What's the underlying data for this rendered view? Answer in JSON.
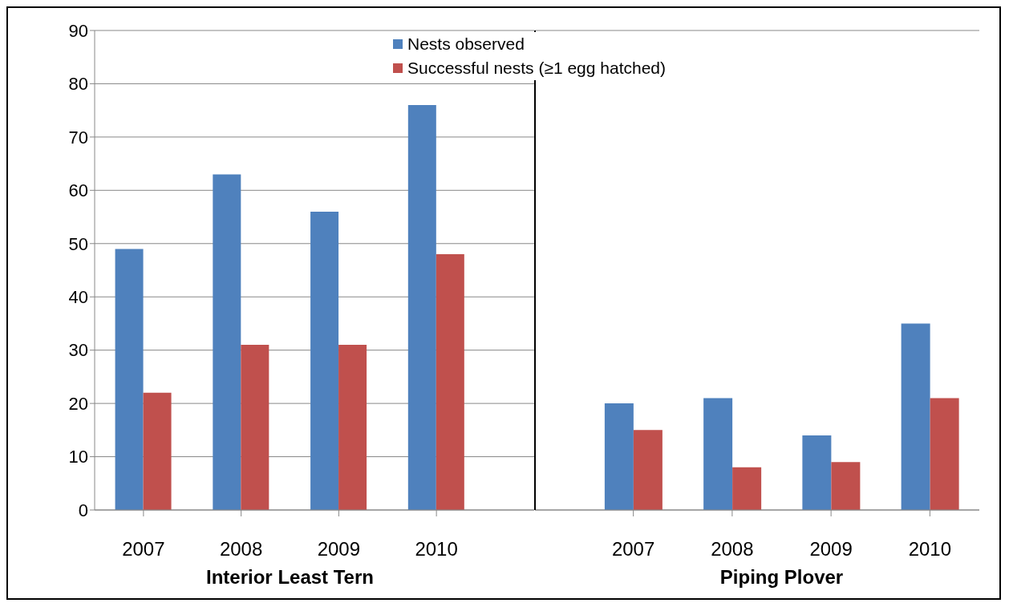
{
  "chart_data": [
    {
      "type": "bar",
      "categories": [
        "2007",
        "2008",
        "2009",
        "2010"
      ],
      "xlabel": "Interior Least Tern",
      "series": [
        {
          "name": "Nests observed",
          "color": "#4f81bd",
          "values": [
            49,
            63,
            56,
            76
          ]
        },
        {
          "name": "Successful nests (≥1 egg hatched)",
          "color": "#c0504d",
          "values": [
            22,
            31,
            31,
            48
          ]
        }
      ],
      "ylim": [
        0,
        90
      ],
      "yticks": [
        0,
        10,
        20,
        30,
        40,
        50,
        60,
        70,
        80,
        90
      ],
      "grid": "y",
      "legend": "top"
    },
    {
      "type": "bar",
      "categories": [
        "2007",
        "2008",
        "2009",
        "2010"
      ],
      "xlabel": "Piping Plover",
      "series": [
        {
          "color": "#4f81bd",
          "values": [
            20,
            21,
            14,
            35
          ]
        },
        {
          "color": "#c0504d",
          "values": [
            15,
            8,
            9,
            21
          ]
        }
      ],
      "ylim": [
        0,
        90
      ],
      "yticks": [
        0,
        10,
        20,
        30,
        40,
        50,
        60,
        70,
        80,
        90
      ],
      "grid": "y",
      "tick_labels": "x"
    }
  ]
}
